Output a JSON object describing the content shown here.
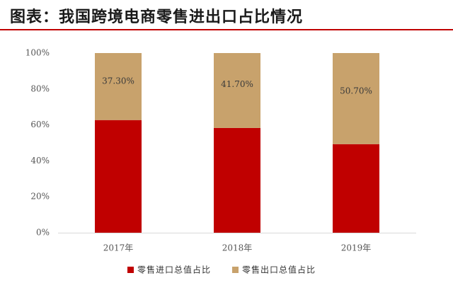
{
  "header": {
    "title": "图表：我国跨境电商零售进出口占比情况"
  },
  "colors": {
    "import": "#c00000",
    "export": "#c8a26c",
    "title_rule": "#c00000",
    "axis": "#d9d9d9"
  },
  "chart_data": {
    "type": "bar",
    "stacked": true,
    "categories": [
      "2017年",
      "2018年",
      "2019年"
    ],
    "series": [
      {
        "name": "零售进口总值占比",
        "values": [
          62.7,
          58.3,
          49.3
        ],
        "color": "#c00000"
      },
      {
        "name": "零售出口总值占比",
        "values": [
          37.3,
          41.7,
          50.7
        ],
        "color": "#c8a26c",
        "data_labels": [
          "37.30%",
          "41.70%",
          "50.70%"
        ]
      }
    ],
    "y_ticks": [
      "0%",
      "20%",
      "40%",
      "60%",
      "80%",
      "100%"
    ],
    "ylim": [
      0,
      100
    ],
    "grid": false,
    "legend": "bottom"
  }
}
